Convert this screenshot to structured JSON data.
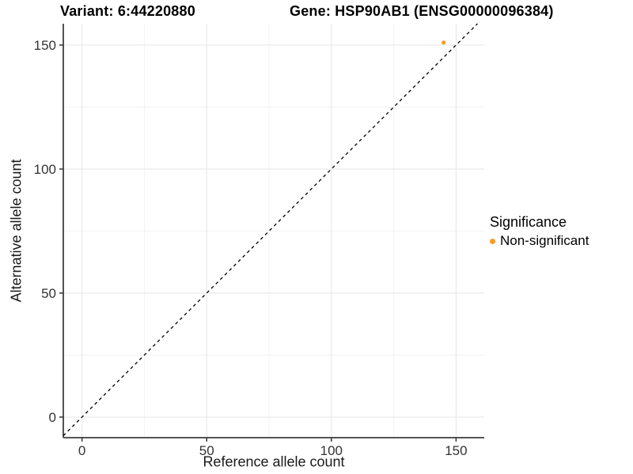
{
  "titles": {
    "variant": "Variant: 6:44220880",
    "gene": "Gene: HSP90AB1 (ENSG00000096384)"
  },
  "axes": {
    "x_label": "Reference allele count",
    "y_label": "Alternative allele count"
  },
  "legend": {
    "title": "Significance",
    "entries": [
      {
        "label": "Non-significant",
        "color": "#F89C28"
      }
    ]
  },
  "colors": {
    "background": "#ffffff",
    "gridline_major": "#e6e6e6",
    "gridline_minor": "#f3f3f3",
    "y_axis_line": "#1a1a1a",
    "x_axis_line": "#555555",
    "tick_mark": "#333333",
    "tick_label": "#333333",
    "diagonal_line": "#000000",
    "point": "#F89C28"
  },
  "chart_data": {
    "type": "scatter",
    "title": "Variant: 6:44220880   Gene: HSP90AB1 (ENSG00000096384)",
    "xlabel": "Reference allele count",
    "ylabel": "Alternative allele count",
    "xlim": [
      -7.5,
      161.3
    ],
    "ylim": [
      -8.3,
      158.6
    ],
    "x_ticks": [
      0,
      50,
      100,
      150
    ],
    "y_ticks": [
      0,
      50,
      100,
      150
    ],
    "x_minor_ticks": [
      25,
      75,
      125
    ],
    "y_minor_ticks": [
      25,
      75,
      125
    ],
    "grid": true,
    "legend_position": "right",
    "series": [
      {
        "name": "Non-significant",
        "color": "#F89C28",
        "points": [
          {
            "x": 145,
            "y": 151
          }
        ]
      }
    ],
    "reference_line": {
      "equation": "y = x",
      "style": "dashed",
      "color": "#000000"
    }
  }
}
